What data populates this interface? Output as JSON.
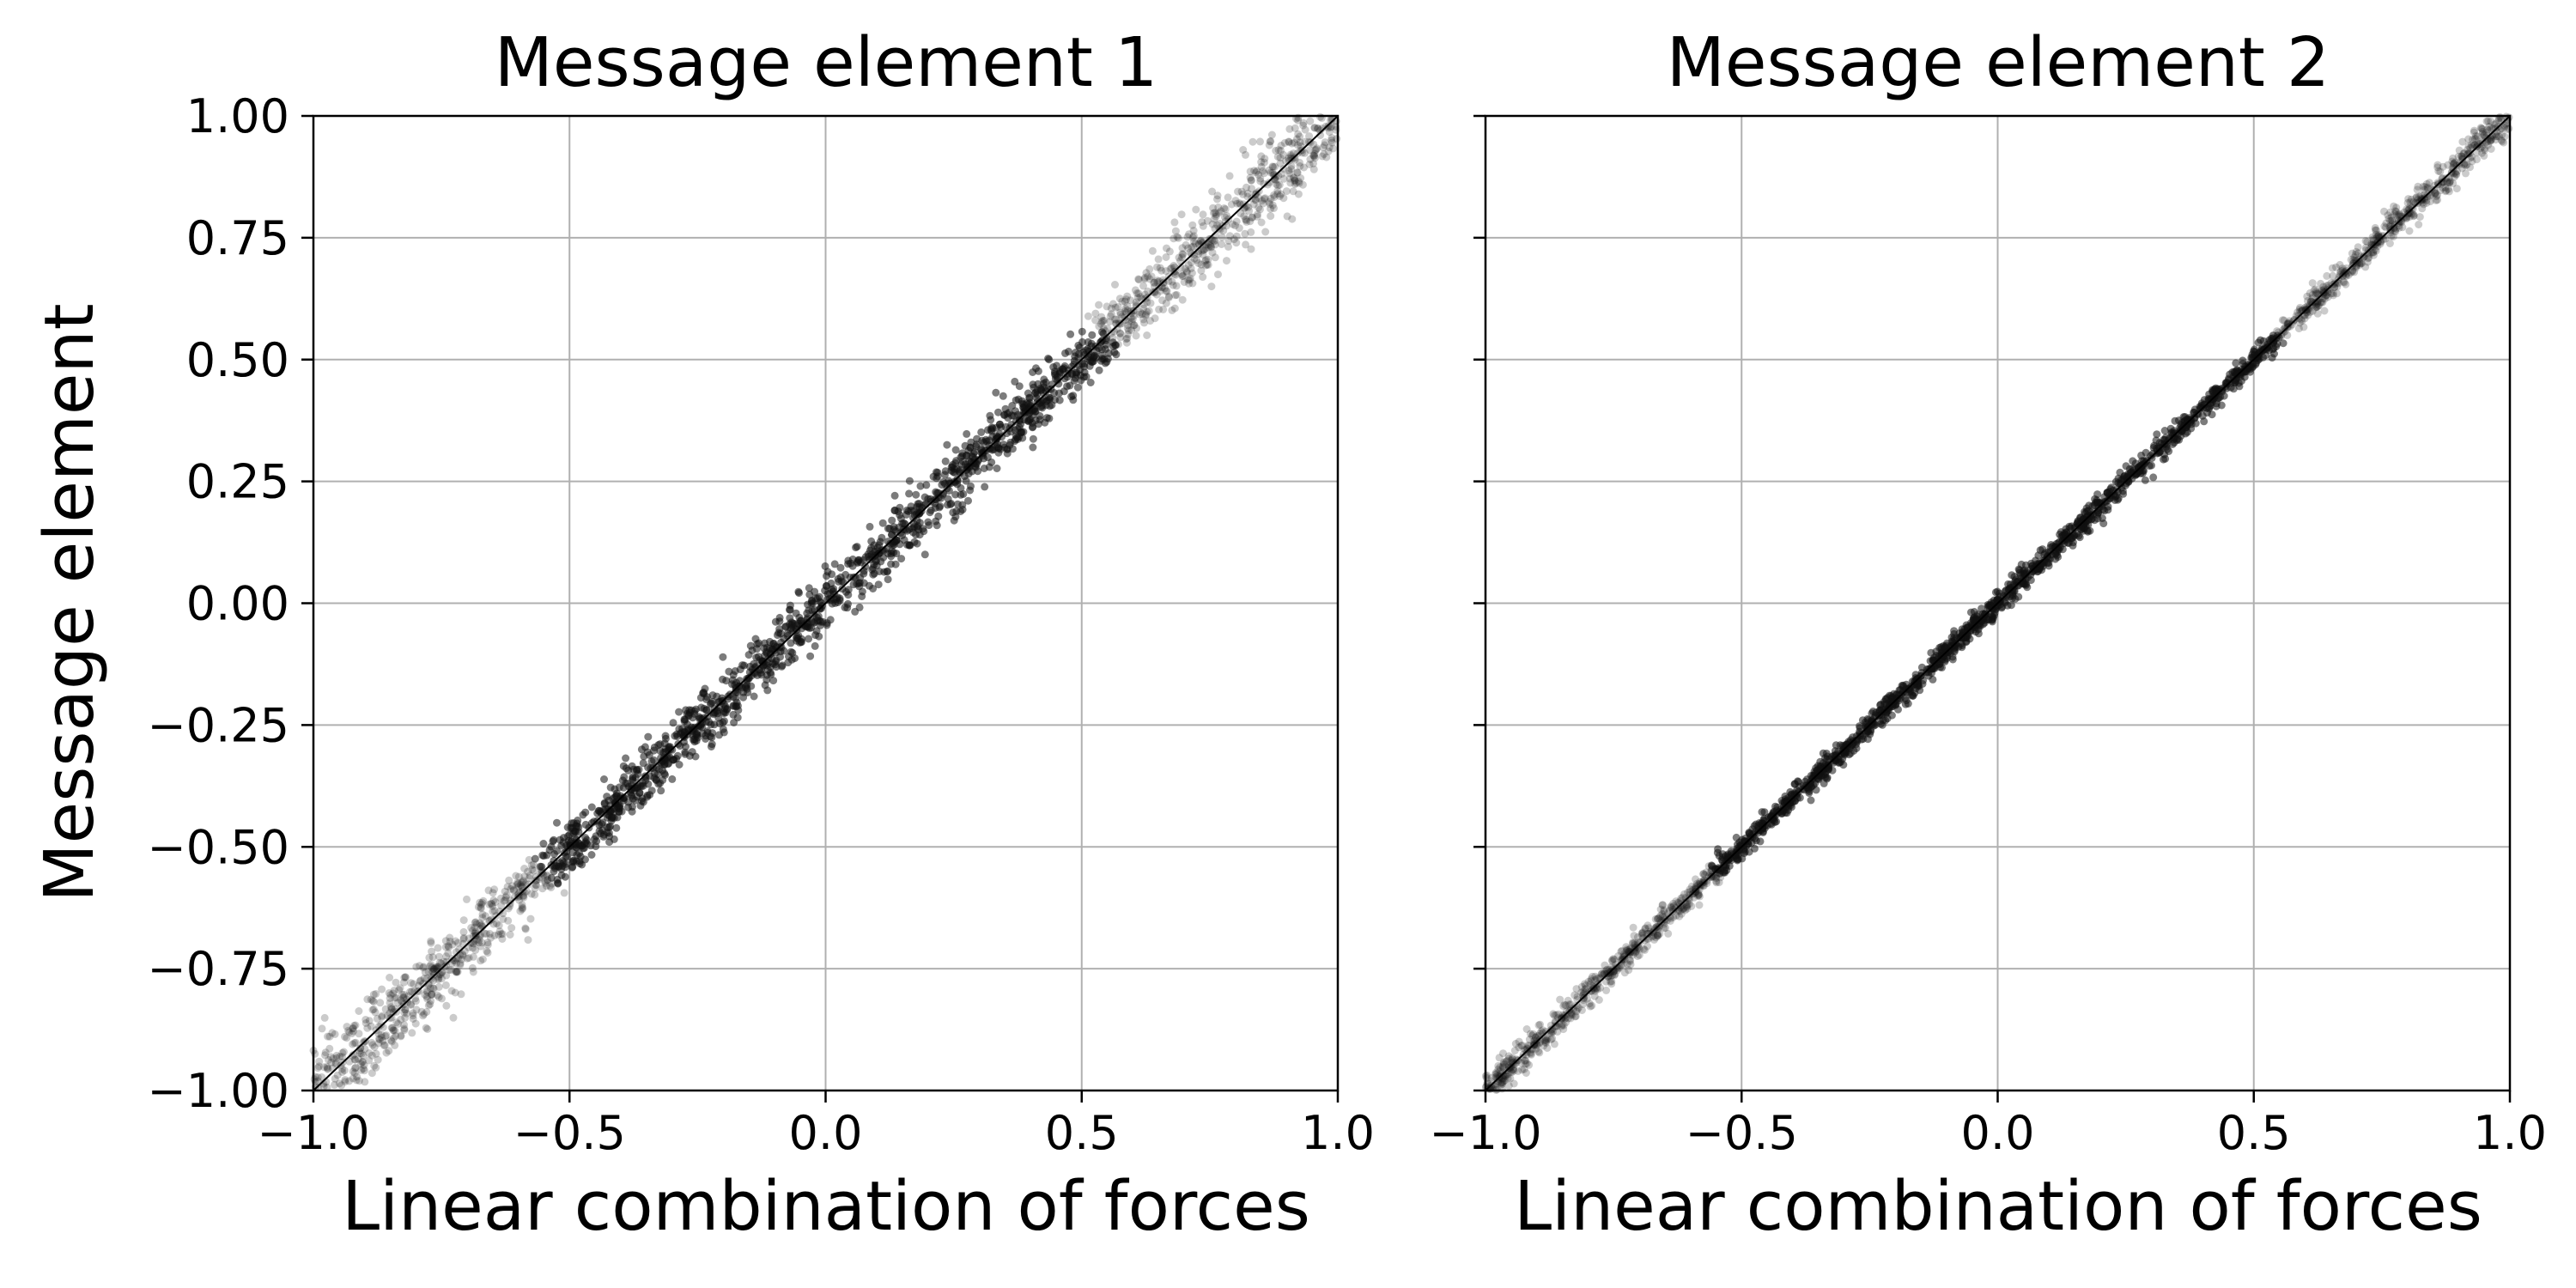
{
  "chart_data": [
    {
      "type": "scatter",
      "title": "Message element 1",
      "xlabel": "Linear combination of forces",
      "ylabel": "Message element",
      "xlim": [
        -1.0,
        1.0
      ],
      "ylim": [
        -1.0,
        1.0
      ],
      "xticks": [
        "−1.0",
        "−0.5",
        "0.0",
        "0.5",
        "1.0"
      ],
      "yticks": [
        "1.00",
        "0.75",
        "0.50",
        "0.25",
        "0.00",
        "−0.25",
        "−0.50",
        "−0.75",
        "−1.00"
      ],
      "grid": true,
      "reference_line": {
        "x": [
          -1.0,
          1.0
        ],
        "y": [
          -1.0,
          1.0
        ]
      },
      "series": [
        {
          "x": [
            -1.0,
            -0.75,
            -0.5,
            -0.25,
            0.0,
            0.25,
            0.5,
            0.75,
            1.0
          ],
          "y": [
            -1.0,
            -0.75,
            -0.5,
            -0.25,
            0.0,
            0.25,
            0.5,
            0.75,
            1.0
          ],
          "spread": 0.03,
          "color": "#111111"
        }
      ]
    },
    {
      "type": "scatter",
      "title": "Message element 2",
      "xlabel": "Linear combination of forces",
      "ylabel": "",
      "xlim": [
        -1.0,
        1.0
      ],
      "ylim": [
        -1.0,
        1.0
      ],
      "xticks": [
        "−1.0",
        "−0.5",
        "0.0",
        "0.5",
        "1.0"
      ],
      "yticks": [],
      "grid": true,
      "reference_line": {
        "x": [
          -1.0,
          1.0
        ],
        "y": [
          -1.0,
          1.0
        ]
      },
      "series": [
        {
          "x": [
            -1.0,
            -0.75,
            -0.5,
            -0.25,
            0.0,
            0.25,
            0.5,
            0.75,
            1.0
          ],
          "y": [
            -1.0,
            -0.75,
            -0.5,
            -0.25,
            0.0,
            0.25,
            0.5,
            0.75,
            1.0
          ],
          "spread": 0.012,
          "color": "#111111"
        }
      ]
    }
  ]
}
